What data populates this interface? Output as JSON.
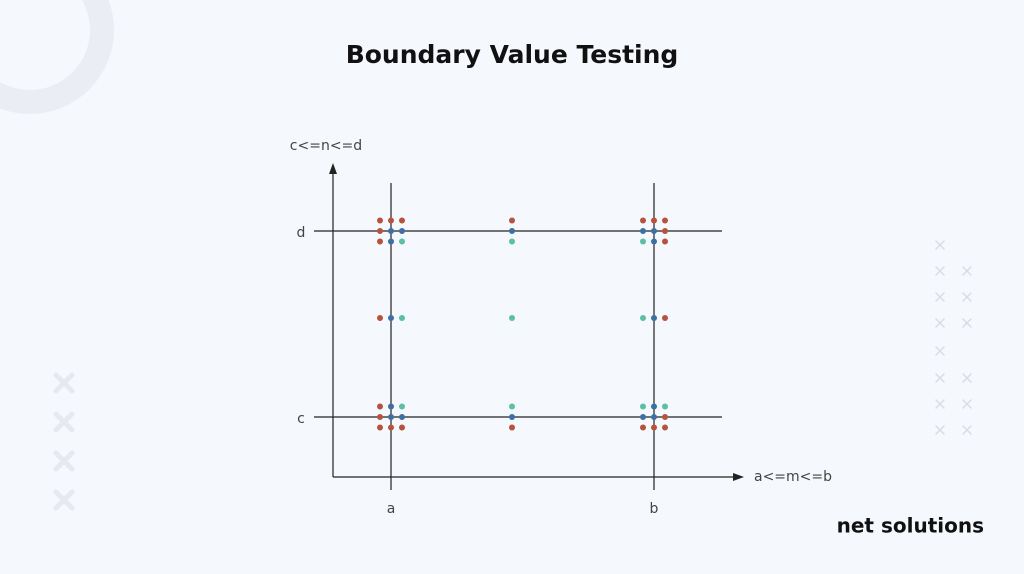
{
  "header": {
    "title": "Boundary Value Testing"
  },
  "diagram": {
    "y_axis_label": "c<=n<=d",
    "x_axis_label": "a<=m<=b",
    "x_ticks": [
      "a",
      "b"
    ],
    "y_ticks": [
      "d",
      "c"
    ]
  },
  "footer": {
    "brand": "net solutions"
  }
}
